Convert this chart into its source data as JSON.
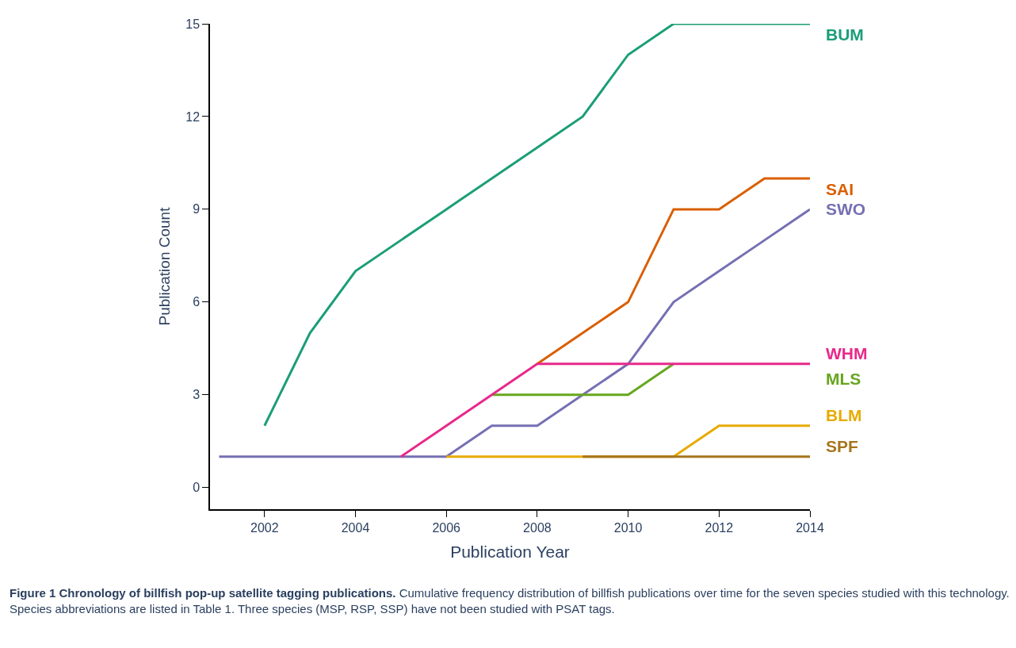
{
  "chart_data": {
    "type": "line",
    "title": "Figure 1 Chronology of billfish pop-up satellite tagging publications.",
    "annotations": [
      "Cumulative frequency distribution of billfish publications over time for the seven species studied with this technology. Species abbreviations are listed in Table 1. Three species (MSP, RSP, SSP) have not been studied with PSAT tags."
    ],
    "xlabel": "Publication Year",
    "ylabel": "Publication Count",
    "x": [
      2001,
      2002,
      2003,
      2004,
      2005,
      2006,
      2007,
      2008,
      2009,
      2010,
      2011,
      2012,
      2013,
      2014
    ],
    "series": [
      {
        "name": "BUM",
        "color": "#1b9e77",
        "values": [
          null,
          2,
          5,
          7,
          8,
          9,
          10,
          11,
          12,
          14,
          15,
          15,
          15,
          15
        ]
      },
      {
        "name": "SAI",
        "color": "#d95f02",
        "values": [
          null,
          null,
          null,
          null,
          null,
          null,
          null,
          4,
          5,
          6,
          9,
          9,
          10,
          10
        ]
      },
      {
        "name": "SWO",
        "color": "#7570b3",
        "values": [
          1,
          1,
          1,
          1,
          1,
          1,
          2,
          2,
          3,
          4,
          6,
          7,
          8,
          9
        ]
      },
      {
        "name": "MLS",
        "color": "#66a61e",
        "values": [
          null,
          null,
          null,
          null,
          null,
          null,
          3,
          3,
          3,
          3,
          4,
          null,
          null,
          null
        ]
      },
      {
        "name": "WHM",
        "color": "#e7298a",
        "values": [
          null,
          null,
          null,
          null,
          1,
          2,
          3,
          4,
          4,
          4,
          4,
          4,
          4,
          4
        ]
      },
      {
        "name": "BLM",
        "color": "#e6ab02",
        "values": [
          null,
          null,
          null,
          null,
          null,
          1,
          1,
          1,
          1,
          1,
          1,
          2,
          2,
          2
        ]
      },
      {
        "name": "SPF",
        "color": "#a6761d",
        "values": [
          null,
          null,
          null,
          null,
          null,
          null,
          null,
          null,
          1,
          1,
          1,
          1,
          1,
          1
        ]
      }
    ],
    "xlim": [
      2000.8,
      2014
    ],
    "xticks": [
      2002,
      2004,
      2006,
      2008,
      2010,
      2012,
      2014
    ],
    "ylim": [
      -0.7,
      15
    ],
    "yticks": [
      0,
      3,
      6,
      9,
      12,
      15
    ],
    "legend": false,
    "marker": "none",
    "line_style": "solid"
  }
}
